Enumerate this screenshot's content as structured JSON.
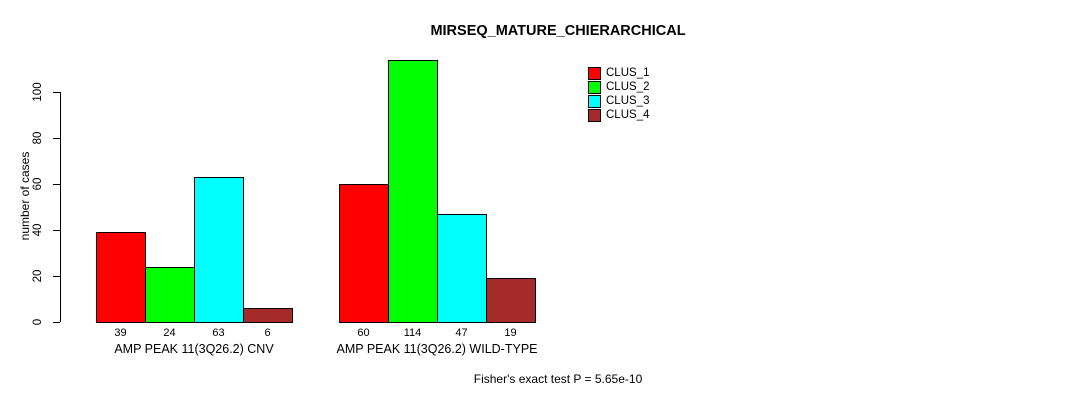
{
  "figure": {
    "title": "MIRSEQ_MATURE_CHIERARCHICAL",
    "ylabel": "number of cases",
    "annotation": "Fisher's exact test P = 5.65e-10"
  },
  "chart_data": {
    "type": "bar",
    "title": "MIRSEQ_MATURE_CHIERARCHICAL",
    "xlabel": "",
    "ylabel": "number of cases",
    "ylim": [
      0,
      116
    ],
    "yticks": [
      0,
      20,
      40,
      60,
      80,
      100
    ],
    "grid": false,
    "legend_position": "top-right",
    "categories": [
      "AMP PEAK 11(3Q26.2) CNV",
      "AMP PEAK 11(3Q26.2) WILD-TYPE"
    ],
    "series": [
      {
        "name": "CLUS_1",
        "color": "#ff0000",
        "values": [
          39,
          60
        ]
      },
      {
        "name": "CLUS_2",
        "color": "#00ff00",
        "values": [
          24,
          114
        ]
      },
      {
        "name": "CLUS_3",
        "color": "#00ffff",
        "values": [
          63,
          47
        ]
      },
      {
        "name": "CLUS_4",
        "color": "#a52a2a",
        "values": [
          6,
          19
        ]
      }
    ],
    "bar_value_labels": [
      [
        39,
        24,
        63,
        6
      ],
      [
        60,
        114,
        47,
        19
      ]
    ],
    "annotation": "Fisher's exact test P = 5.65e-10"
  }
}
